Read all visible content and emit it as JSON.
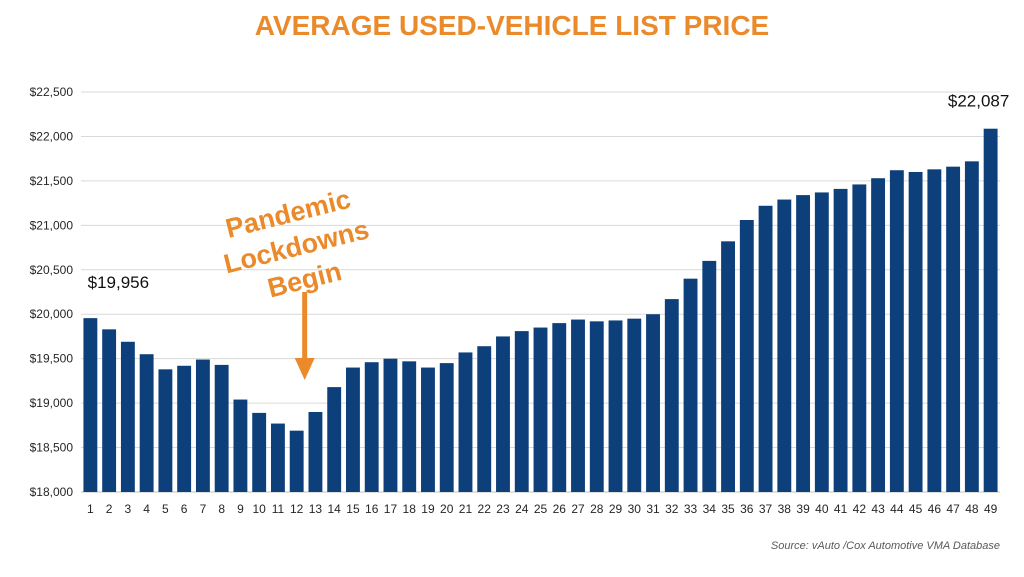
{
  "chart_data": {
    "type": "bar",
    "title": "AVERAGE USED-VEHICLE LIST PRICE",
    "xlabel": "",
    "ylabel": "",
    "categories": [
      "1",
      "2",
      "3",
      "4",
      "5",
      "6",
      "7",
      "8",
      "9",
      "10",
      "11",
      "12",
      "13",
      "14",
      "15",
      "16",
      "17",
      "18",
      "19",
      "20",
      "21",
      "22",
      "23",
      "24",
      "25",
      "26",
      "27",
      "28",
      "29",
      "30",
      "31",
      "32",
      "33",
      "34",
      "35",
      "36",
      "37",
      "38",
      "39",
      "40",
      "41",
      "42",
      "43",
      "44",
      "45",
      "46",
      "47",
      "48",
      "49"
    ],
    "values": [
      19956,
      19830,
      19690,
      19550,
      19380,
      19420,
      19490,
      19430,
      19040,
      18890,
      18770,
      18690,
      18900,
      19180,
      19400,
      19460,
      19500,
      19470,
      19400,
      19450,
      19570,
      19640,
      19750,
      19810,
      19850,
      19900,
      19940,
      19920,
      19930,
      19950,
      20000,
      20170,
      20400,
      20600,
      20820,
      21060,
      21220,
      21290,
      21340,
      21370,
      21410,
      21460,
      21530,
      21620,
      21600,
      21630,
      21660,
      21720,
      22087
    ],
    "ylim": [
      18000,
      22500
    ],
    "yticks": [
      18000,
      18500,
      19000,
      19500,
      20000,
      20500,
      21000,
      21500,
      22000,
      22500
    ],
    "ytick_labels": [
      "$18,000",
      "$18,500",
      "$19,000",
      "$19,500",
      "$20,000",
      "$20,500",
      "$21,000",
      "$21,500",
      "$22,000",
      "$22,500"
    ],
    "grid": true,
    "data_labels": [
      {
        "category": "1",
        "text": "$19,956"
      },
      {
        "category": "49",
        "text": "$22,087"
      }
    ],
    "annotations": [
      {
        "category": "12",
        "lines": [
          "Pandemic",
          "Lockdowns",
          "Begin"
        ],
        "arrow": true
      }
    ],
    "source": "Source:  vAuto /Cox Automotive VMA Database"
  },
  "colors": {
    "bar": "#0d3f7a",
    "title": "#ea8a2a",
    "annotation": "#ea8a2a",
    "grid": "#d9d9d9",
    "axis": "#bfbfbf"
  }
}
